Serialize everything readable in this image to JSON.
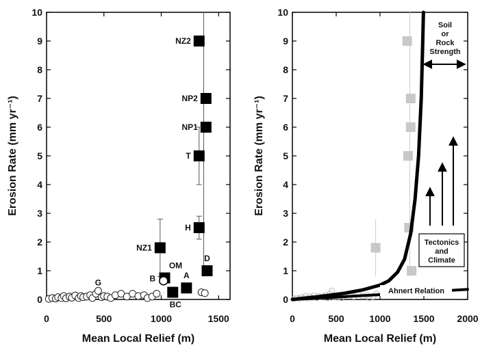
{
  "chart_data": [
    {
      "type": "scatter",
      "title": "",
      "xlabel": "Mean Local Relief (m)",
      "ylabel": "Erosion Rate (mm yr⁻¹)",
      "xlim": [
        0,
        1600
      ],
      "ylim": [
        0,
        10
      ],
      "xticks": [
        "0",
        "500",
        "1000",
        "1500"
      ],
      "yticks": [
        "0",
        "1",
        "2",
        "3",
        "4",
        "5",
        "6",
        "7",
        "8",
        "9",
        "10"
      ],
      "labeled_points": [
        {
          "label": "NZ2",
          "x": 1330,
          "y": 9.0
        },
        {
          "label": "NP2",
          "x": 1390,
          "y": 7.0
        },
        {
          "label": "NP1",
          "x": 1390,
          "y": 6.0
        },
        {
          "label": "T",
          "x": 1330,
          "y": 5.0,
          "y_err": [
            4.0,
            6.0
          ]
        },
        {
          "label": "H",
          "x": 1330,
          "y": 2.5,
          "y_err": [
            2.1,
            2.9
          ]
        },
        {
          "label": "NZ1",
          "x": 990,
          "y": 1.8,
          "y_err": [
            0.8,
            2.8
          ]
        },
        {
          "label": "D",
          "x": 1400,
          "y": 1.0
        },
        {
          "label": "OM",
          "x": 1030,
          "y": 0.75
        },
        {
          "label": "B",
          "x": 1020,
          "y": 0.65
        },
        {
          "label": "A",
          "x": 1220,
          "y": 0.4
        },
        {
          "label": "BC",
          "x": 1100,
          "y": 0.25
        }
      ],
      "open_circles": {
        "x": [
          20,
          50,
          80,
          100,
          130,
          150,
          170,
          200,
          220,
          250,
          280,
          300,
          320,
          350,
          380,
          400,
          430,
          450,
          480,
          500,
          530,
          560,
          600,
          650,
          700,
          750,
          800,
          850,
          880,
          920,
          960,
          1350,
          1380
        ],
        "y": [
          0.02,
          0.05,
          0.03,
          0.08,
          0.05,
          0.12,
          0.04,
          0.1,
          0.06,
          0.14,
          0.05,
          0.12,
          0.08,
          0.1,
          0.15,
          0.05,
          0.2,
          0.3,
          0.08,
          0.12,
          0.1,
          0.05,
          0.15,
          0.2,
          0.1,
          0.2,
          0.12,
          0.15,
          0.05,
          0.1,
          0.2,
          0.25,
          0.22
        ]
      },
      "annotations": [
        {
          "text": "G",
          "x": 450,
          "y": 0.35
        }
      ],
      "vertical_line": {
        "x": 1370,
        "y_from": 0.8,
        "y_to": 10
      }
    },
    {
      "type": "line",
      "title": "",
      "xlabel": "Mean Local Relief (m)",
      "ylabel": "Erosion Rate (mm yr⁻¹)",
      "xlim": [
        0,
        2000
      ],
      "ylim": [
        0,
        10
      ],
      "xticks": [
        "0",
        "500",
        "1000",
        "1500",
        "2000"
      ],
      "yticks": [
        "0",
        "1",
        "2",
        "3",
        "4",
        "5",
        "6",
        "7",
        "8",
        "9",
        "10"
      ],
      "series": [
        {
          "kind": "curve",
          "x": [
            0,
            300,
            600,
            800,
            1000,
            1100,
            1200,
            1280,
            1350,
            1400,
            1440,
            1470,
            1485,
            1495
          ],
          "y": [
            0.0,
            0.1,
            0.22,
            0.33,
            0.5,
            0.65,
            0.95,
            1.4,
            2.3,
            3.5,
            5.0,
            7.0,
            8.7,
            10.0
          ]
        },
        {
          "kind": "curve",
          "name": "Ahnert Relation",
          "x": [
            0,
            500,
            1000,
            1500,
            2000
          ],
          "y": [
            0.0,
            0.08,
            0.17,
            0.26,
            0.35
          ]
        }
      ],
      "gray_squares": {
        "x": [
          950,
          1310,
          1320,
          1330,
          1350,
          1350,
          1360
        ],
        "y": [
          1.8,
          9.0,
          5.0,
          2.5,
          7.0,
          6.0,
          1.0
        ]
      },
      "annotations": [
        {
          "text": "Soil or Rock Strength",
          "lines": [
            "Soil",
            "or",
            "Rock",
            "Strength"
          ]
        },
        {
          "text": "Tectonics and Climate",
          "lines": [
            "Tectonics",
            "and",
            "Climate"
          ]
        },
        {
          "text": "Ahnert Relation"
        }
      ]
    }
  ]
}
